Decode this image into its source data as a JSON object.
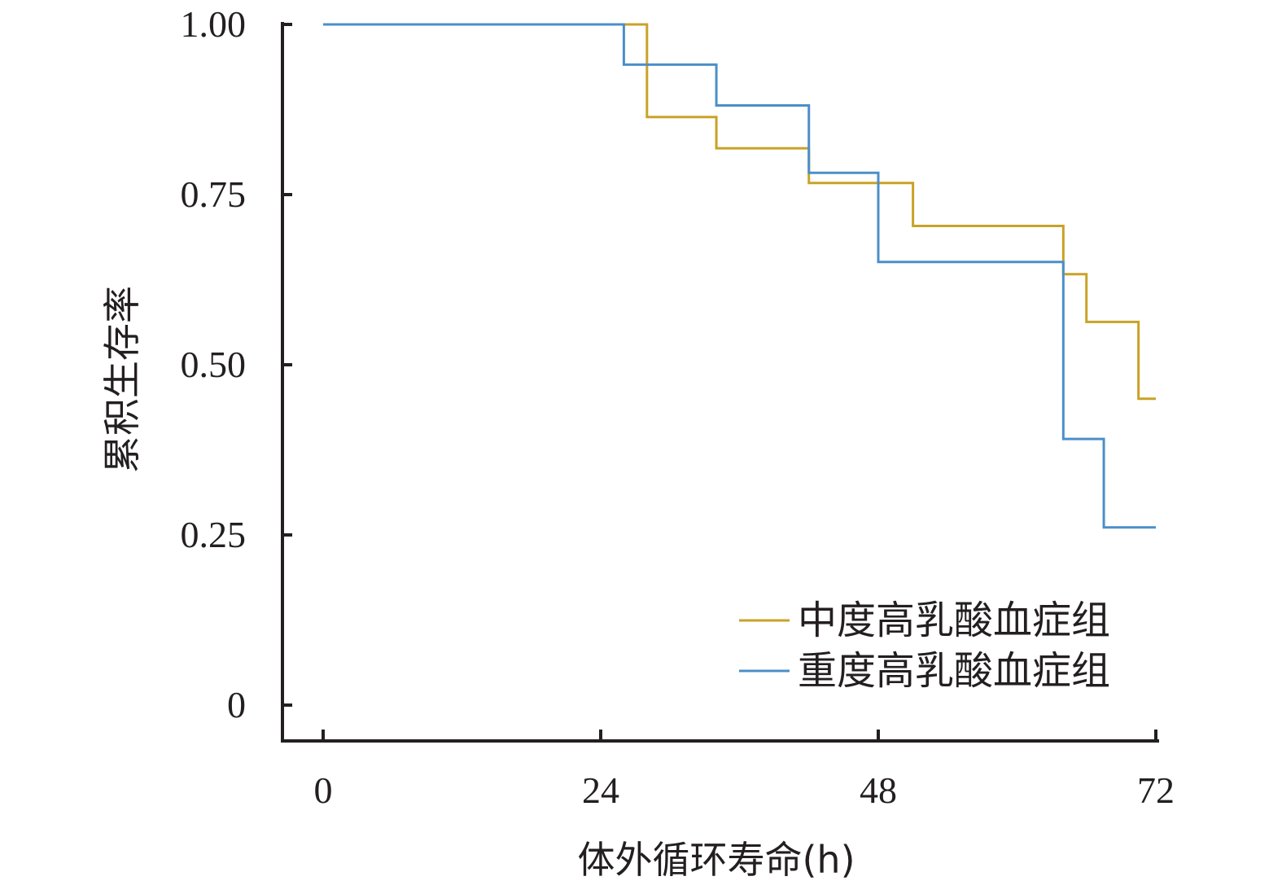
{
  "chart_data": {
    "type": "line",
    "subtype": "kaplan-meier-step",
    "xlabel": "体外循环寿命(h)",
    "ylabel": "累积生存率",
    "x_ticks": [
      "0",
      "24",
      "48",
      "72"
    ],
    "y_ticks": [
      "0",
      "0.25",
      "0.50",
      "0.75",
      "1.00"
    ],
    "xlim": [
      0,
      72
    ],
    "ylim": [
      0,
      1.0
    ],
    "legend_position": "bottom-right",
    "grid": false,
    "series": [
      {
        "name": "中度高乳酸血症组",
        "color": "#c9a227",
        "x": [
          0,
          28,
          34,
          42,
          51,
          64,
          66,
          70.5,
          72
        ],
        "y": [
          1.0,
          0.864,
          0.818,
          0.767,
          0.704,
          0.633,
          0.563,
          0.45,
          0.45
        ]
      },
      {
        "name": "重度高乳酸血症组",
        "color": "#4b8fc9",
        "x": [
          0,
          26,
          34,
          42,
          48,
          64,
          67.5,
          72
        ],
        "y": [
          1.0,
          0.941,
          0.881,
          0.782,
          0.651,
          0.391,
          0.261,
          0.261
        ]
      }
    ]
  }
}
